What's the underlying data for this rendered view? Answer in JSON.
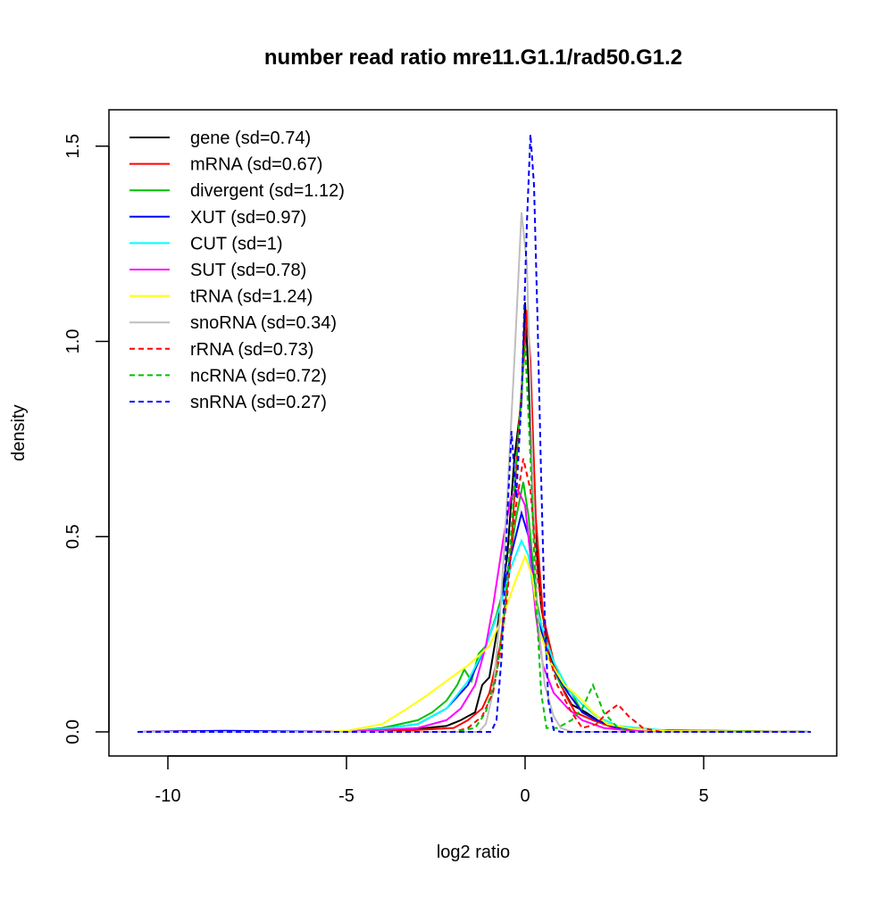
{
  "chart_data": {
    "type": "line",
    "title": "number read ratio mre11.G1.1/rad50.G1.2",
    "xlabel": "log2 ratio",
    "ylabel": "density",
    "xlim": [
      -11.5,
      8.7
    ],
    "ylim": [
      -0.06,
      1.6
    ],
    "xticks": [
      -10,
      -5,
      0,
      5
    ],
    "xtick_labels": [
      "-10",
      "-5",
      "0",
      "5"
    ],
    "yticks": [
      0,
      0.5,
      1,
      1.5
    ],
    "ytick_labels": [
      "0.0",
      "0.5",
      "1.0",
      "1.5"
    ],
    "grid": false,
    "legend_position": "top-left",
    "series": [
      {
        "name": "gene (sd=0.74)",
        "color": "#000000",
        "dash": false,
        "points": [
          [
            -10.85,
            0
          ],
          [
            -4,
            0
          ],
          [
            -3,
            0.008
          ],
          [
            -2.2,
            0.015
          ],
          [
            -1.8,
            0.03
          ],
          [
            -1.4,
            0.05
          ],
          [
            -1.2,
            0.12
          ],
          [
            -1,
            0.14
          ],
          [
            -0.8,
            0.25
          ],
          [
            -0.5,
            0.45
          ],
          [
            -0.3,
            0.7
          ],
          [
            -0.1,
            0.85
          ],
          [
            0,
            1.1
          ],
          [
            0.1,
            0.9
          ],
          [
            0.25,
            0.55
          ],
          [
            0.45,
            0.32
          ],
          [
            0.7,
            0.2
          ],
          [
            1,
            0.12
          ],
          [
            1.3,
            0.07
          ],
          [
            1.7,
            0.05
          ],
          [
            2.2,
            0.02
          ],
          [
            3,
            0.005
          ],
          [
            8,
            0
          ]
        ]
      },
      {
        "name": "mRNA (sd=0.67)",
        "color": "#ff0000",
        "dash": false,
        "points": [
          [
            -10.85,
            0
          ],
          [
            -9.5,
            0.002
          ],
          [
            -4,
            0
          ],
          [
            -3,
            0.005
          ],
          [
            -2,
            0.01
          ],
          [
            -1.6,
            0.03
          ],
          [
            -1.2,
            0.06
          ],
          [
            -1,
            0.1
          ],
          [
            -0.7,
            0.22
          ],
          [
            -0.4,
            0.45
          ],
          [
            -0.2,
            0.75
          ],
          [
            0,
            1.0
          ],
          [
            0.05,
            1.08
          ],
          [
            0.15,
            0.95
          ],
          [
            0.3,
            0.55
          ],
          [
            0.5,
            0.3
          ],
          [
            0.8,
            0.18
          ],
          [
            1.1,
            0.1
          ],
          [
            1.4,
            0.05
          ],
          [
            1.9,
            0.03
          ],
          [
            2.5,
            0.01
          ],
          [
            4,
            0.003
          ],
          [
            8,
            0
          ]
        ]
      },
      {
        "name": "divergent (sd=1.12)",
        "color": "#00c000",
        "dash": false,
        "points": [
          [
            -10.85,
            0
          ],
          [
            -5,
            0
          ],
          [
            -4,
            0.01
          ],
          [
            -3,
            0.03
          ],
          [
            -2.6,
            0.05
          ],
          [
            -2.2,
            0.08
          ],
          [
            -1.9,
            0.12
          ],
          [
            -1.7,
            0.16
          ],
          [
            -1.5,
            0.13
          ],
          [
            -1.3,
            0.2
          ],
          [
            -1.1,
            0.22
          ],
          [
            -0.8,
            0.3
          ],
          [
            -0.5,
            0.4
          ],
          [
            -0.25,
            0.55
          ],
          [
            -0.05,
            0.64
          ],
          [
            0.1,
            0.55
          ],
          [
            0.3,
            0.35
          ],
          [
            0.6,
            0.2
          ],
          [
            1,
            0.12
          ],
          [
            1.3,
            0.1
          ],
          [
            1.6,
            0.05
          ],
          [
            2,
            0.03
          ],
          [
            2.5,
            0.015
          ],
          [
            3.5,
            0.005
          ],
          [
            8,
            0
          ]
        ]
      },
      {
        "name": "XUT (sd=0.97)",
        "color": "#0000ff",
        "dash": false,
        "points": [
          [
            -10.85,
            0
          ],
          [
            -8.5,
            0.003
          ],
          [
            -5,
            0
          ],
          [
            -4,
            0.008
          ],
          [
            -3,
            0.02
          ],
          [
            -2.2,
            0.06
          ],
          [
            -1.6,
            0.12
          ],
          [
            -1.1,
            0.22
          ],
          [
            -0.7,
            0.32
          ],
          [
            -0.4,
            0.45
          ],
          [
            -0.1,
            0.56
          ],
          [
            0.1,
            0.5
          ],
          [
            0.3,
            0.33
          ],
          [
            0.5,
            0.24
          ],
          [
            0.8,
            0.16
          ],
          [
            1.2,
            0.1
          ],
          [
            1.6,
            0.05
          ],
          [
            2,
            0.03
          ],
          [
            2.6,
            0.01
          ],
          [
            4,
            0.003
          ],
          [
            8,
            0
          ]
        ]
      },
      {
        "name": "CUT (sd=1)",
        "color": "#00ffff",
        "dash": false,
        "points": [
          [
            -10.85,
            0
          ],
          [
            -5,
            0
          ],
          [
            -4,
            0.008
          ],
          [
            -3,
            0.02
          ],
          [
            -2.2,
            0.06
          ],
          [
            -1.6,
            0.13
          ],
          [
            -1.1,
            0.22
          ],
          [
            -0.7,
            0.32
          ],
          [
            -0.4,
            0.42
          ],
          [
            -0.1,
            0.49
          ],
          [
            0.1,
            0.45
          ],
          [
            0.3,
            0.32
          ],
          [
            0.5,
            0.26
          ],
          [
            0.8,
            0.18
          ],
          [
            1.2,
            0.11
          ],
          [
            1.6,
            0.07
          ],
          [
            2,
            0.04
          ],
          [
            2.6,
            0.015
          ],
          [
            4,
            0.003
          ],
          [
            8,
            0
          ]
        ]
      },
      {
        "name": "SUT (sd=0.78)",
        "color": "#ff00ff",
        "dash": false,
        "points": [
          [
            -10.85,
            0
          ],
          [
            -5,
            0
          ],
          [
            -4,
            0.005
          ],
          [
            -3,
            0.01
          ],
          [
            -2.2,
            0.03
          ],
          [
            -1.8,
            0.06
          ],
          [
            -1.4,
            0.12
          ],
          [
            -1.1,
            0.22
          ],
          [
            -0.9,
            0.32
          ],
          [
            -0.6,
            0.5
          ],
          [
            -0.4,
            0.6
          ],
          [
            -0.2,
            0.62
          ],
          [
            0,
            0.58
          ],
          [
            0.15,
            0.45
          ],
          [
            0.3,
            0.3
          ],
          [
            0.5,
            0.17
          ],
          [
            0.8,
            0.1
          ],
          [
            1.2,
            0.06
          ],
          [
            1.6,
            0.03
          ],
          [
            2.2,
            0.01
          ],
          [
            3,
            0.003
          ],
          [
            8,
            0
          ]
        ]
      },
      {
        "name": "tRNA (sd=1.24)",
        "color": "#ffff00",
        "dash": false,
        "points": [
          [
            -10.85,
            0
          ],
          [
            -5.5,
            0
          ],
          [
            -5,
            0.003
          ],
          [
            -4,
            0.02
          ],
          [
            -3.3,
            0.06
          ],
          [
            -2.8,
            0.09
          ],
          [
            -2.2,
            0.13
          ],
          [
            -1.6,
            0.17
          ],
          [
            -1,
            0.22
          ],
          [
            -0.6,
            0.3
          ],
          [
            -0.3,
            0.38
          ],
          [
            0,
            0.45
          ],
          [
            0.2,
            0.4
          ],
          [
            0.4,
            0.26
          ],
          [
            0.7,
            0.18
          ],
          [
            1.1,
            0.12
          ],
          [
            1.5,
            0.09
          ],
          [
            1.9,
            0.05
          ],
          [
            2.3,
            0.02
          ],
          [
            3,
            0.008
          ],
          [
            4,
            0.002
          ],
          [
            8,
            0
          ]
        ]
      },
      {
        "name": "snoRNA (sd=0.34)",
        "color": "#bebebe",
        "dash": false,
        "points": [
          [
            -10.85,
            0
          ],
          [
            -1.3,
            0
          ],
          [
            -1.1,
            0.02
          ],
          [
            -0.9,
            0.1
          ],
          [
            -0.7,
            0.3
          ],
          [
            -0.5,
            0.6
          ],
          [
            -0.3,
            0.95
          ],
          [
            -0.1,
            1.33
          ],
          [
            0.05,
            1.2
          ],
          [
            0.2,
            0.7
          ],
          [
            0.35,
            0.3
          ],
          [
            0.55,
            0.12
          ],
          [
            0.8,
            0.04
          ],
          [
            1,
            0.01
          ],
          [
            1.3,
            0
          ],
          [
            8,
            0
          ]
        ]
      },
      {
        "name": "rRNA (sd=0.73)",
        "color": "#ff0000",
        "dash": true,
        "points": [
          [
            -10.85,
            0
          ],
          [
            -2,
            0
          ],
          [
            -1.6,
            0.01
          ],
          [
            -1.2,
            0.04
          ],
          [
            -0.9,
            0.1
          ],
          [
            -0.7,
            0.2
          ],
          [
            -0.5,
            0.35
          ],
          [
            -0.3,
            0.55
          ],
          [
            -0.05,
            0.7
          ],
          [
            0.15,
            0.62
          ],
          [
            0.35,
            0.4
          ],
          [
            0.6,
            0.22
          ],
          [
            0.9,
            0.12
          ],
          [
            1.3,
            0.05
          ],
          [
            1.6,
            0.01
          ],
          [
            2,
            0.02
          ],
          [
            2.3,
            0.05
          ],
          [
            2.6,
            0.07
          ],
          [
            2.9,
            0.04
          ],
          [
            3.3,
            0.01
          ],
          [
            3.8,
            0
          ],
          [
            8,
            0
          ]
        ]
      },
      {
        "name": "ncRNA (sd=0.72)",
        "color": "#00c000",
        "dash": true,
        "points": [
          [
            -10.85,
            0
          ],
          [
            -2,
            0
          ],
          [
            -1.4,
            0.01
          ],
          [
            -1.1,
            0.05
          ],
          [
            -0.8,
            0.15
          ],
          [
            -0.6,
            0.28
          ],
          [
            -0.4,
            0.5
          ],
          [
            -0.2,
            0.75
          ],
          [
            0,
            0.99
          ],
          [
            0.15,
            0.7
          ],
          [
            0.3,
            0.35
          ],
          [
            0.45,
            0.1
          ],
          [
            0.6,
            0.01
          ],
          [
            0.9,
            0.01
          ],
          [
            1.3,
            0.03
          ],
          [
            1.6,
            0.06
          ],
          [
            1.9,
            0.12
          ],
          [
            2.2,
            0.05
          ],
          [
            2.6,
            0.01
          ],
          [
            3,
            0
          ],
          [
            8,
            0
          ]
        ]
      },
      {
        "name": "snRNA (sd=0.27)",
        "color": "#0000ff",
        "dash": true,
        "points": [
          [
            -10.85,
            0
          ],
          [
            -0.95,
            0
          ],
          [
            -0.8,
            0.03
          ],
          [
            -0.65,
            0.2
          ],
          [
            -0.5,
            0.55
          ],
          [
            -0.38,
            0.77
          ],
          [
            -0.25,
            0.6
          ],
          [
            -0.1,
            0.85
          ],
          [
            0.05,
            1.3
          ],
          [
            0.15,
            1.53
          ],
          [
            0.25,
            1.4
          ],
          [
            0.35,
            1.05
          ],
          [
            0.45,
            0.65
          ],
          [
            0.55,
            0.3
          ],
          [
            0.65,
            0.08
          ],
          [
            0.8,
            0.005
          ],
          [
            1,
            0
          ],
          [
            8,
            0
          ]
        ]
      }
    ]
  }
}
